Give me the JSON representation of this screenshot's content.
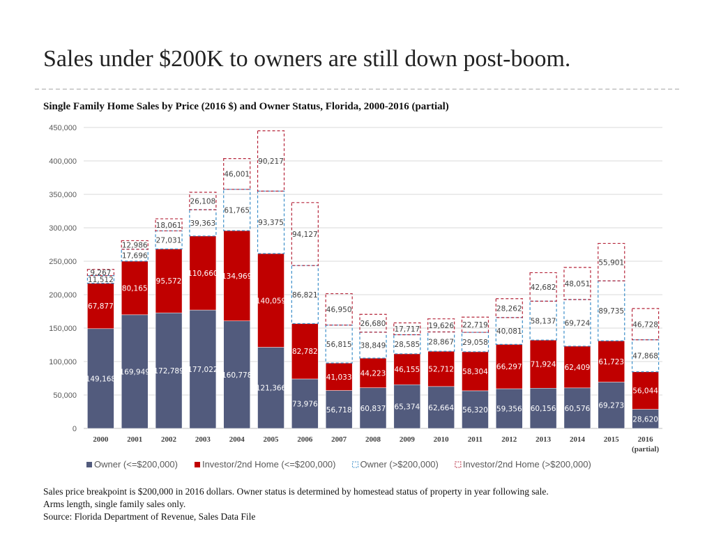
{
  "title": "Sales under $200K to owners are still down post-boom.",
  "chart_data": {
    "type": "bar",
    "stacked": true,
    "title": "Single Family Home Sales by Price (2016 $) and Owner Status, Florida, 2000-2016 (partial)",
    "categories": [
      "2000",
      "2001",
      "2002",
      "2003",
      "2004",
      "2005",
      "2006",
      "2007",
      "2008",
      "2009",
      "2010",
      "2011",
      "2012",
      "2013",
      "2014",
      "2015",
      "2016"
    ],
    "category_sublabels": {
      "2016": "(partial)"
    },
    "ylim": [
      0,
      450000
    ],
    "yticks": [
      "0",
      "50,000",
      "100,000",
      "150,000",
      "200,000",
      "250,000",
      "300,000",
      "350,000",
      "400,000",
      "450,000"
    ],
    "grid": true,
    "legend": "bottom",
    "series": [
      {
        "name": "Owner (<=$200,000)",
        "color": "#525b7d",
        "style": "solid",
        "values": [
          149168,
          169949,
          172789,
          177022,
          160778,
          121366,
          73976,
          56718,
          60837,
          65374,
          62664,
          56320,
          59356,
          60156,
          60576,
          69273,
          28620
        ]
      },
      {
        "name": "Investor/2nd Home (<=$200,000)",
        "color": "#c00000",
        "style": "solid",
        "values": [
          67877,
          80165,
          95572,
          110660,
          134969,
          140059,
          82782,
          41033,
          44223,
          46155,
          52712,
          58304,
          66297,
          71924,
          62409,
          61723,
          56044
        ]
      },
      {
        "name": "Owner (>$200,000)",
        "color": "#3b8ec9",
        "style": "dashed",
        "values": [
          11512,
          17696,
          27031,
          39363,
          61765,
          93375,
          86821,
          56815,
          38849,
          28585,
          28867,
          29058,
          40081,
          58137,
          69724,
          89735,
          47868
        ]
      },
      {
        "name": "Investor/2nd Home (>$200,000)",
        "color": "#b5253a",
        "style": "dashed",
        "values": [
          9267,
          12986,
          18061,
          26108,
          46001,
          90217,
          94127,
          46950,
          26680,
          17717,
          19626,
          22719,
          28262,
          42682,
          48051,
          55901,
          46728
        ]
      }
    ]
  },
  "notes": [
    "Sales price breakpoint is $200,000 in 2016 dollars. Owner status is determined by homestead status of property in year following sale.",
    "Arms length, single family sales only.",
    "Source: Florida Department of Revenue, Sales Data File"
  ]
}
